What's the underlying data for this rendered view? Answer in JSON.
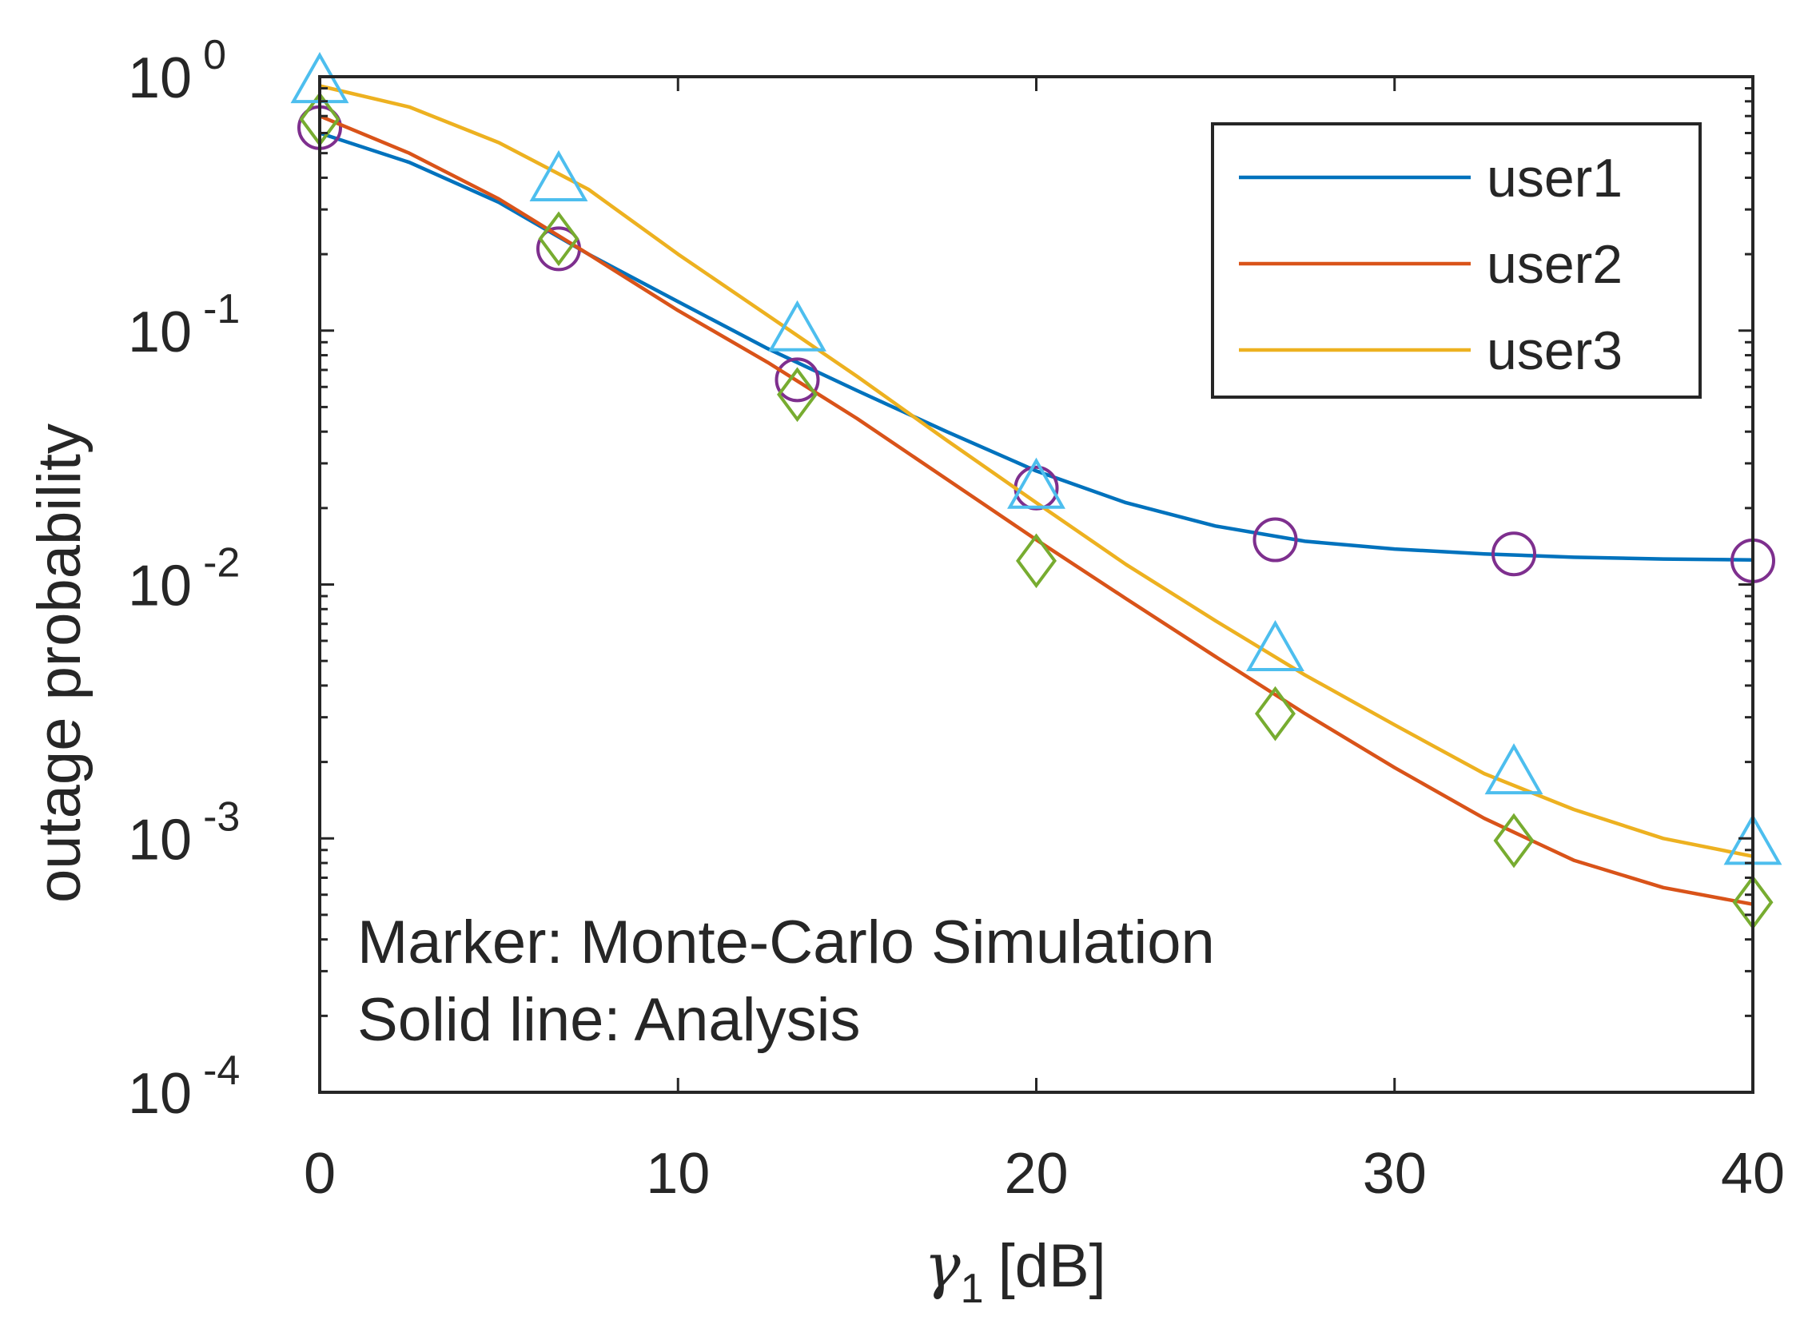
{
  "chart_data": {
    "type": "line",
    "xlabel": "γ",
    "xlabel_subscript": "1",
    "xlabel_unit": "[dB]",
    "ylabel": "outage probability",
    "x_scale": "linear",
    "y_scale": "log",
    "xlim": [
      0,
      40
    ],
    "ylim": [
      0.0001,
      1
    ],
    "x_ticks": [
      0,
      10,
      20,
      30,
      40
    ],
    "x_tick_labels": [
      "0",
      "10",
      "20",
      "30",
      "40"
    ],
    "y_ticks": [
      1,
      0.1,
      0.01,
      0.001,
      0.0001
    ],
    "y_tick_base": "10",
    "y_tick_exponents": [
      "0",
      "-1",
      "-2",
      "-3",
      "-4"
    ],
    "grid": false,
    "legend_position": "top-right",
    "series": [
      {
        "name": "user1",
        "color": "#0072BD",
        "line_x": [
          0,
          2.5,
          5,
          7.5,
          10,
          12.5,
          15,
          17.5,
          20,
          22.5,
          25,
          27.5,
          30,
          32.5,
          35,
          37.5,
          40
        ],
        "line_y": [
          0.6,
          0.46,
          0.32,
          0.2,
          0.13,
          0.085,
          0.058,
          0.04,
          0.028,
          0.021,
          0.017,
          0.0148,
          0.0138,
          0.0132,
          0.0128,
          0.0126,
          0.0125
        ],
        "marker": "circle",
        "marker_color": "#7E2F8E",
        "marker_x": [
          0,
          6.67,
          13.33,
          20,
          26.67,
          33.33,
          40
        ],
        "marker_y": [
          0.63,
          0.21,
          0.064,
          0.024,
          0.015,
          0.0132,
          0.0124
        ]
      },
      {
        "name": "user2",
        "color": "#D95319",
        "line_x": [
          0,
          2.5,
          5,
          7.5,
          10,
          12.5,
          15,
          17.5,
          20,
          22.5,
          25,
          27.5,
          30,
          32.5,
          35,
          37.5,
          40
        ],
        "line_y": [
          0.7,
          0.5,
          0.33,
          0.2,
          0.12,
          0.075,
          0.045,
          0.026,
          0.015,
          0.0088,
          0.0052,
          0.0031,
          0.0019,
          0.0012,
          0.00082,
          0.00064,
          0.00055
        ],
        "marker": "diamond",
        "marker_color": "#77AC30",
        "marker_x": [
          0,
          6.67,
          13.33,
          20,
          26.67,
          33.33,
          40
        ],
        "marker_y": [
          0.68,
          0.23,
          0.056,
          0.0124,
          0.0031,
          0.00098,
          0.00056
        ]
      },
      {
        "name": "user3",
        "color": "#EDB120",
        "line_x": [
          0,
          2.5,
          5,
          7.5,
          10,
          12.5,
          15,
          17.5,
          20,
          22.5,
          25,
          27.5,
          30,
          32.5,
          35,
          37.5,
          40
        ],
        "line_y": [
          0.92,
          0.76,
          0.55,
          0.36,
          0.2,
          0.115,
          0.066,
          0.037,
          0.021,
          0.012,
          0.0072,
          0.0044,
          0.0028,
          0.0018,
          0.0013,
          0.001,
          0.00085
        ],
        "marker": "triangle",
        "marker_color": "#4DBEEE",
        "marker_x": [
          0,
          6.67,
          13.33,
          20,
          26.67,
          33.33,
          40
        ],
        "marker_y": [
          0.95,
          0.39,
          0.1,
          0.024,
          0.0055,
          0.0018,
          0.00095
        ]
      }
    ],
    "annotations": [
      "Marker: Monte-Carlo Simulation",
      "Solid line: Analysis"
    ]
  }
}
